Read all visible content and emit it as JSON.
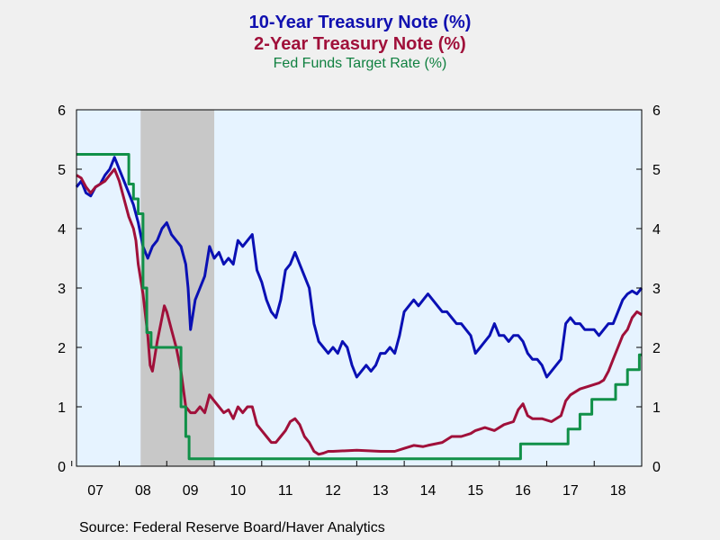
{
  "chart_data": {
    "type": "line",
    "title_lines": [
      {
        "text": "10-Year Treasury Note (%)",
        "color": "#1010b0"
      },
      {
        "text": "2-Year Treasury Note (%)",
        "color": "#a0103a"
      },
      {
        "text": "Fed Funds Target Rate (%)",
        "color": "#108040"
      }
    ],
    "xlim": [
      2006.6,
      2018.5
    ],
    "ylim": [
      0,
      6
    ],
    "y_ticks": [
      0,
      1,
      2,
      3,
      4,
      5,
      6
    ],
    "x_tick_labels": [
      {
        "label": "07",
        "x": 2007.0
      },
      {
        "label": "08",
        "x": 2008.0
      },
      {
        "label": "09",
        "x": 2009.0
      },
      {
        "label": "10",
        "x": 2010.0
      },
      {
        "label": "11",
        "x": 2011.0
      },
      {
        "label": "12",
        "x": 2012.0
      },
      {
        "label": "13",
        "x": 2013.0
      },
      {
        "label": "14",
        "x": 2014.0
      },
      {
        "label": "15",
        "x": 2015.0
      },
      {
        "label": "16",
        "x": 2016.0
      },
      {
        "label": "17",
        "x": 2017.0
      },
      {
        "label": "18",
        "x": 2018.0
      }
    ],
    "recession_band": [
      2007.95,
      2009.5
    ],
    "background_color": "#e6f3ff",
    "recession_color": "#c8c8c8",
    "grid": false,
    "series": [
      {
        "key": "ten_year",
        "color": "#0a10b4",
        "step": false,
        "x": [
          2006.6,
          2006.7,
          2006.8,
          2006.9,
          2007.0,
          2007.1,
          2007.2,
          2007.3,
          2007.4,
          2007.45,
          2007.5,
          2007.6,
          2007.7,
          2007.8,
          2007.9,
          2008.0,
          2008.1,
          2008.2,
          2008.3,
          2008.4,
          2008.5,
          2008.6,
          2008.7,
          2008.8,
          2008.9,
          2008.95,
          2009.0,
          2009.1,
          2009.2,
          2009.3,
          2009.4,
          2009.5,
          2009.6,
          2009.7,
          2009.8,
          2009.9,
          2010.0,
          2010.1,
          2010.2,
          2010.3,
          2010.4,
          2010.5,
          2010.6,
          2010.7,
          2010.8,
          2010.9,
          2011.0,
          2011.1,
          2011.2,
          2011.3,
          2011.4,
          2011.5,
          2011.6,
          2011.7,
          2011.8,
          2011.9,
          2012.0,
          2012.1,
          2012.2,
          2012.3,
          2012.4,
          2012.5,
          2012.6,
          2012.7,
          2012.8,
          2012.9,
          2013.0,
          2013.1,
          2013.2,
          2013.3,
          2013.4,
          2013.5,
          2013.6,
          2013.7,
          2013.8,
          2013.9,
          2014.0,
          2014.1,
          2014.2,
          2014.3,
          2014.4,
          2014.5,
          2014.6,
          2014.7,
          2014.8,
          2014.9,
          2015.0,
          2015.1,
          2015.2,
          2015.3,
          2015.4,
          2015.5,
          2015.6,
          2015.7,
          2015.8,
          2015.9,
          2016.0,
          2016.1,
          2016.2,
          2016.3,
          2016.4,
          2016.5,
          2016.6,
          2016.7,
          2016.8,
          2016.9,
          2017.0,
          2017.1,
          2017.2,
          2017.3,
          2017.4,
          2017.5,
          2017.6,
          2017.7,
          2017.8,
          2017.9,
          2018.0,
          2018.1,
          2018.2,
          2018.3,
          2018.4,
          2018.5
        ],
        "y": [
          4.7,
          4.8,
          4.6,
          4.55,
          4.7,
          4.75,
          4.9,
          5.0,
          5.2,
          5.1,
          5.0,
          4.8,
          4.6,
          4.4,
          4.1,
          3.7,
          3.5,
          3.7,
          3.8,
          4.0,
          4.1,
          3.9,
          3.8,
          3.7,
          3.4,
          3.0,
          2.3,
          2.8,
          3.0,
          3.2,
          3.7,
          3.5,
          3.6,
          3.4,
          3.5,
          3.4,
          3.8,
          3.7,
          3.8,
          3.9,
          3.3,
          3.1,
          2.8,
          2.6,
          2.5,
          2.8,
          3.3,
          3.4,
          3.6,
          3.4,
          3.2,
          3.0,
          2.4,
          2.1,
          2.0,
          1.9,
          2.0,
          1.9,
          2.1,
          2.0,
          1.7,
          1.5,
          1.6,
          1.7,
          1.6,
          1.7,
          1.9,
          1.9,
          2.0,
          1.9,
          2.2,
          2.6,
          2.7,
          2.8,
          2.7,
          2.8,
          2.9,
          2.8,
          2.7,
          2.6,
          2.6,
          2.5,
          2.4,
          2.4,
          2.3,
          2.2,
          1.9,
          2.0,
          2.1,
          2.2,
          2.4,
          2.2,
          2.2,
          2.1,
          2.2,
          2.2,
          2.1,
          1.9,
          1.8,
          1.8,
          1.7,
          1.5,
          1.6,
          1.7,
          1.8,
          2.4,
          2.5,
          2.4,
          2.4,
          2.3,
          2.3,
          2.3,
          2.2,
          2.3,
          2.4,
          2.4,
          2.6,
          2.8,
          2.9,
          2.95,
          2.9,
          3.0
        ]
      },
      {
        "key": "two_year",
        "color": "#a0103a",
        "step": false,
        "x": [
          2006.6,
          2006.7,
          2006.8,
          2006.9,
          2007.0,
          2007.1,
          2007.2,
          2007.3,
          2007.4,
          2007.45,
          2007.5,
          2007.6,
          2007.7,
          2007.8,
          2007.85,
          2007.9,
          2008.0,
          2008.1,
          2008.15,
          2008.2,
          2008.3,
          2008.4,
          2008.45,
          2008.5,
          2008.6,
          2008.7,
          2008.8,
          2008.9,
          2009.0,
          2009.1,
          2009.2,
          2009.3,
          2009.4,
          2009.5,
          2009.6,
          2009.7,
          2009.8,
          2009.9,
          2010.0,
          2010.1,
          2010.2,
          2010.3,
          2010.4,
          2010.5,
          2010.6,
          2010.7,
          2010.8,
          2010.9,
          2011.0,
          2011.1,
          2011.2,
          2011.3,
          2011.4,
          2011.5,
          2011.6,
          2011.7,
          2011.8,
          2011.9,
          2012.0,
          2012.5,
          2013.0,
          2013.3,
          2013.5,
          2013.7,
          2013.9,
          2014.0,
          2014.3,
          2014.5,
          2014.7,
          2014.9,
          2015.0,
          2015.2,
          2015.4,
          2015.6,
          2015.8,
          2015.9,
          2016.0,
          2016.1,
          2016.2,
          2016.4,
          2016.6,
          2016.8,
          2016.9,
          2017.0,
          2017.2,
          2017.4,
          2017.6,
          2017.7,
          2017.8,
          2017.9,
          2018.0,
          2018.1,
          2018.2,
          2018.3,
          2018.4,
          2018.5
        ],
        "y": [
          4.9,
          4.85,
          4.7,
          4.6,
          4.7,
          4.75,
          4.8,
          4.9,
          5.0,
          4.9,
          4.8,
          4.5,
          4.2,
          4.0,
          3.8,
          3.4,
          2.9,
          2.2,
          1.7,
          1.6,
          2.1,
          2.5,
          2.7,
          2.6,
          2.3,
          2.0,
          1.6,
          1.0,
          0.9,
          0.9,
          1.0,
          0.9,
          1.2,
          1.1,
          1.0,
          0.9,
          0.95,
          0.8,
          1.0,
          0.9,
          1.0,
          1.0,
          0.7,
          0.6,
          0.5,
          0.4,
          0.4,
          0.5,
          0.6,
          0.75,
          0.8,
          0.7,
          0.5,
          0.4,
          0.25,
          0.2,
          0.22,
          0.25,
          0.25,
          0.27,
          0.25,
          0.25,
          0.3,
          0.35,
          0.33,
          0.35,
          0.4,
          0.5,
          0.5,
          0.55,
          0.6,
          0.65,
          0.6,
          0.7,
          0.75,
          0.95,
          1.05,
          0.85,
          0.8,
          0.8,
          0.75,
          0.85,
          1.1,
          1.2,
          1.3,
          1.35,
          1.4,
          1.45,
          1.6,
          1.8,
          2.0,
          2.2,
          2.3,
          2.5,
          2.6,
          2.55
        ]
      },
      {
        "key": "fed_funds",
        "color": "#109048",
        "step": true,
        "x": [
          2006.6,
          2007.7,
          2007.8,
          2007.9,
          2008.0,
          2008.08,
          2008.17,
          2008.3,
          2008.8,
          2008.9,
          2008.97,
          2015.95,
          2016.95,
          2017.2,
          2017.45,
          2017.95,
          2018.2,
          2018.45
        ],
        "y": [
          5.25,
          4.75,
          4.5,
          4.25,
          3.0,
          2.25,
          2.0,
          2.0,
          1.0,
          0.5,
          0.125,
          0.375,
          0.625,
          0.875,
          1.125,
          1.375,
          1.625,
          1.875
        ]
      }
    ]
  },
  "source_text": "Source:  Federal Reserve Board/Haver Analytics"
}
